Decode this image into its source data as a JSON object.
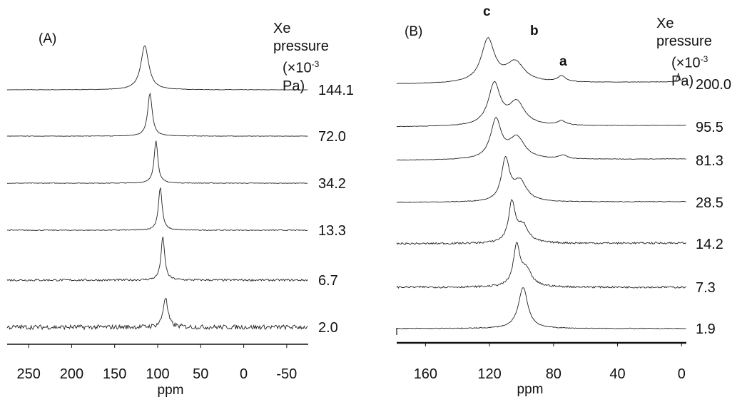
{
  "chart_data": [
    {
      "type": "line",
      "panel_label": "(A)",
      "header_line1": "Xe pressure",
      "header_line2_prefix": "(×10",
      "header_line2_exp": "-3",
      "header_line2_suffix": " Pa)",
      "xlabel": "ppm",
      "xlim": [
        275,
        -75
      ],
      "x_ticks": [
        "250",
        "200",
        "150",
        "100",
        "50",
        "0",
        "-50"
      ],
      "x_tick_values": [
        250,
        200,
        150,
        100,
        50,
        0,
        -50
      ],
      "series": [
        {
          "name": "144.1",
          "peak_ppm": 115,
          "height": 62,
          "width": 5.5,
          "noise": 0.3
        },
        {
          "name": "72.0",
          "peak_ppm": 109,
          "height": 60,
          "width": 3.2,
          "noise": 0.3
        },
        {
          "name": "34.2",
          "peak_ppm": 102,
          "height": 60,
          "width": 2.6,
          "noise": 0.4
        },
        {
          "name": "13.3",
          "peak_ppm": 97,
          "height": 60,
          "width": 2.6,
          "noise": 0.6
        },
        {
          "name": "6.7",
          "peak_ppm": 94,
          "height": 60,
          "width": 2.6,
          "noise": 1.4
        },
        {
          "name": "2.0",
          "peak_ppm": 91,
          "height": 42,
          "width": 3.2,
          "noise": 3.2
        }
      ]
    },
    {
      "type": "line",
      "panel_label": "(B)",
      "header_line1": "Xe pressure",
      "header_line2_prefix": "(×10",
      "header_line2_exp": "-3",
      "header_line2_suffix": " Pa)",
      "xlabel": "ppm",
      "xlim": [
        178,
        -3
      ],
      "x_ticks": [
        "160",
        "120",
        "80",
        "40",
        "0"
      ],
      "x_tick_values": [
        160,
        120,
        80,
        40,
        0
      ],
      "peak_labels": [
        {
          "text": "c",
          "ppm": 125
        },
        {
          "text": "b",
          "ppm": 100
        },
        {
          "text": "a",
          "ppm": 75
        }
      ],
      "series": [
        {
          "name": "200.0",
          "peaks": [
            {
              "ppm": 121,
              "h": 60,
              "w": 5
            },
            {
              "ppm": 104,
              "h": 28,
              "w": 7
            },
            {
              "ppm": 75,
              "h": 8,
              "w": 3
            },
            {
              "ppm": 2,
              "h": 12,
              "w": 0.8
            }
          ],
          "noise": 0.4
        },
        {
          "name": "95.5",
          "peaks": [
            {
              "ppm": 117,
              "h": 58,
              "w": 4.5
            },
            {
              "ppm": 103,
              "h": 32,
              "w": 6
            },
            {
              "ppm": 75,
              "h": 6,
              "w": 3
            }
          ],
          "noise": 0.4
        },
        {
          "name": "81.3",
          "peaks": [
            {
              "ppm": 116,
              "h": 54,
              "w": 4
            },
            {
              "ppm": 103,
              "h": 30,
              "w": 6
            },
            {
              "ppm": 74,
              "h": 5,
              "w": 3
            }
          ],
          "noise": 0.4
        },
        {
          "name": "28.5",
          "peaks": [
            {
              "ppm": 110,
              "h": 58,
              "w": 3
            },
            {
              "ppm": 101,
              "h": 28,
              "w": 5
            }
          ],
          "noise": 0.5
        },
        {
          "name": "14.2",
          "peaks": [
            {
              "ppm": 106,
              "h": 56,
              "w": 2.5
            },
            {
              "ppm": 99,
              "h": 24,
              "w": 4
            }
          ],
          "noise": 1.3
        },
        {
          "name": "7.3",
          "peaks": [
            {
              "ppm": 103,
              "h": 56,
              "w": 2.5
            },
            {
              "ppm": 97,
              "h": 22,
              "w": 4
            }
          ],
          "noise": 1.3
        },
        {
          "name": "1.9",
          "peaks": [
            {
              "ppm": 99,
              "h": 58,
              "w": 3.5
            }
          ],
          "noise": 0.6
        }
      ]
    }
  ]
}
